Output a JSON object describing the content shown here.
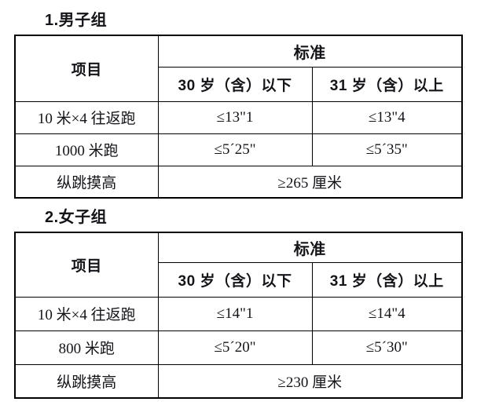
{
  "page": {
    "background_color": "#ffffff",
    "text_color": "#141419",
    "border_color": "#000000"
  },
  "sections": [
    {
      "heading": "1.男子组",
      "table": {
        "item_header": "项目",
        "standard_header": "标准",
        "age_columns": [
          "30 岁（含）以下",
          "31 岁（含）以上"
        ],
        "rows": [
          {
            "item": "10 米×4 往返跑",
            "values": [
              "≤13\"1",
              "≤13\"4"
            ]
          },
          {
            "item": "1000 米跑",
            "values": [
              "≤5´25\"",
              "≤5´35\""
            ]
          },
          {
            "item": "纵跳摸高",
            "values": [
              "≥265 厘米"
            ]
          }
        ]
      }
    },
    {
      "heading": "2.女子组",
      "table": {
        "item_header": "项目",
        "standard_header": "标准",
        "age_columns": [
          "30 岁（含）以下",
          "31 岁（含）以上"
        ],
        "rows": [
          {
            "item": "10 米×4 往返跑",
            "values": [
              "≤14\"1",
              "≤14\"4"
            ]
          },
          {
            "item": "800 米跑",
            "values": [
              "≤5´20\"",
              "≤5´30\""
            ]
          },
          {
            "item": "纵跳摸高",
            "values": [
              "≥230 厘米"
            ]
          }
        ]
      }
    }
  ]
}
